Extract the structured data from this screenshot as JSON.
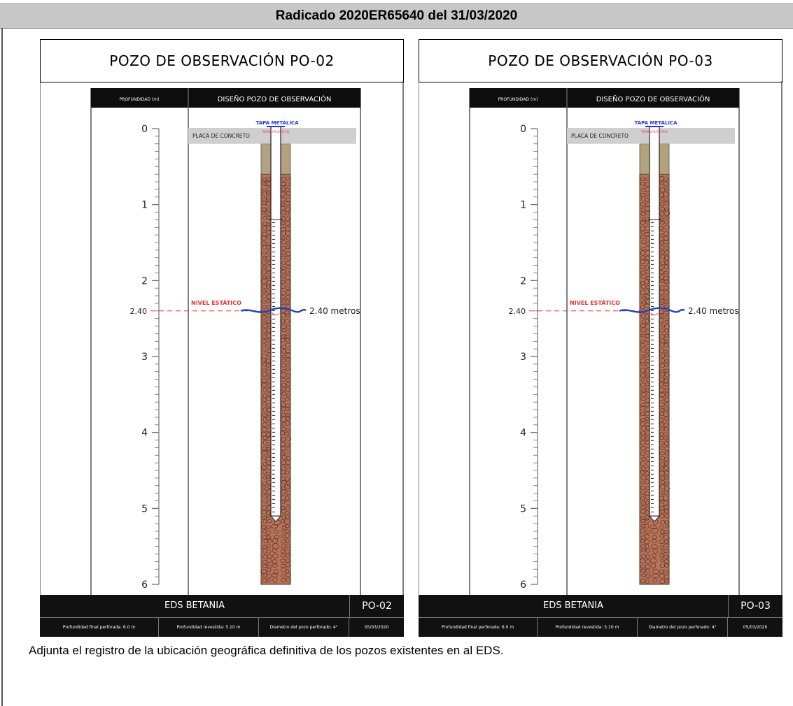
{
  "header": {
    "title": "Radicado 2020ER65640 del 31/03/2020"
  },
  "caption": "Adjunta el registro de la ubicación geográfica definitiva de los pozos existentes en al EDS.",
  "colors": {
    "soil": "#b7725a",
    "concrete_slab": "#cfcfcf",
    "concrete_seal": "#b3a27e",
    "water_line": "#1f43b8",
    "static_level_label": "#e0353b",
    "metal_cap_label": "#2233ee",
    "footer_bg": "#111111"
  },
  "wells": [
    {
      "title": "POZO DE OBSERVACIÓN PO-02",
      "depth_header": "PROFUNDIDAD (m)",
      "design_header": "DISEÑO POZO DE OBSERVACIÓN",
      "depth_ticks": [
        "0",
        "1",
        "2",
        "3",
        "4",
        "5",
        "6"
      ],
      "depth_max": 6,
      "static_level_value": 2.4,
      "static_level_tick": "2.40",
      "static_level_label": "NIVEL ESTÁTICO",
      "static_level_text": "2.40 metros",
      "metal_cap_label": "TAPA METÁLICA",
      "plug_label": "TAPÓN PLÁSTICO",
      "slab_label": "PLACA DE CONCRETO",
      "seal_bottom_depth": 0.6,
      "screen_top_depth": 1.2,
      "casing_bottom_depth": 5.1,
      "borehole_bottom_depth": 6.0,
      "site": "EDS BETANIA",
      "code": "PO-02",
      "footer": {
        "final_depth": "Profundidad final perforada:  6.0 m",
        "cased_depth": "Profundidad revestida:  5.10 m",
        "diameter": "Diametro del pozo perforado:  4\"",
        "date": "05/03/2020"
      }
    },
    {
      "title": "POZO DE OBSERVACIÓN PO-03",
      "depth_header": "PROFUNDIDAD (m)",
      "design_header": "DISEÑO POZO DE OBSERVACIÓN",
      "depth_ticks": [
        "0",
        "1",
        "2",
        "3",
        "4",
        "5",
        "6"
      ],
      "depth_max": 6,
      "static_level_value": 2.4,
      "static_level_tick": "2.40",
      "static_level_label": "NIVEL ESTÁTICO",
      "static_level_text": "2.40 metros",
      "metal_cap_label": "TAPA METÁLICA",
      "plug_label": "TAPÓN PLÁSTICO",
      "slab_label": "PLACA DE CONCRETO",
      "seal_bottom_depth": 0.6,
      "screen_top_depth": 1.2,
      "casing_bottom_depth": 5.1,
      "borehole_bottom_depth": 6.0,
      "site": "EDS BETANIA",
      "code": "PO-03",
      "footer": {
        "final_depth": "Profundidad final perforada:  6.0 m",
        "cased_depth": "Profundidad revestida:  5.10 m",
        "diameter": "Diametro del pozo perforado:  4\"",
        "date": "05/03/2020"
      }
    }
  ]
}
